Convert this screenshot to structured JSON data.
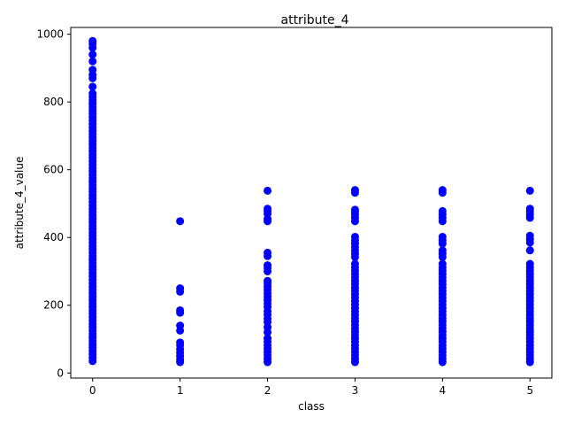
{
  "chart_data": {
    "type": "scatter",
    "title": "attribute_4",
    "xlabel": "class",
    "ylabel": "attribute_4_value",
    "xlim": [
      -0.25,
      5.25
    ],
    "ylim": [
      -15,
      1020
    ],
    "xticks": [
      0,
      1,
      2,
      3,
      4,
      5
    ],
    "yticks": [
      0,
      200,
      400,
      600,
      800,
      1000
    ],
    "grid": false,
    "marker_color": "#0000ff",
    "series": [
      {
        "points": [
          {
            "x": 0,
            "y": 35
          },
          {
            "x": 0,
            "y": 45
          },
          {
            "x": 0,
            "y": 55
          },
          {
            "x": 0,
            "y": 65
          },
          {
            "x": 0,
            "y": 75
          },
          {
            "x": 0,
            "y": 85
          },
          {
            "x": 0,
            "y": 95
          },
          {
            "x": 0,
            "y": 105
          },
          {
            "x": 0,
            "y": 115
          },
          {
            "x": 0,
            "y": 125
          },
          {
            "x": 0,
            "y": 135
          },
          {
            "x": 0,
            "y": 145
          },
          {
            "x": 0,
            "y": 155
          },
          {
            "x": 0,
            "y": 165
          },
          {
            "x": 0,
            "y": 175
          },
          {
            "x": 0,
            "y": 185
          },
          {
            "x": 0,
            "y": 195
          },
          {
            "x": 0,
            "y": 205
          },
          {
            "x": 0,
            "y": 215
          },
          {
            "x": 0,
            "y": 225
          },
          {
            "x": 0,
            "y": 235
          },
          {
            "x": 0,
            "y": 245
          },
          {
            "x": 0,
            "y": 255
          },
          {
            "x": 0,
            "y": 265
          },
          {
            "x": 0,
            "y": 275
          },
          {
            "x": 0,
            "y": 285
          },
          {
            "x": 0,
            "y": 295
          },
          {
            "x": 0,
            "y": 305
          },
          {
            "x": 0,
            "y": 315
          },
          {
            "x": 0,
            "y": 325
          },
          {
            "x": 0,
            "y": 335
          },
          {
            "x": 0,
            "y": 345
          },
          {
            "x": 0,
            "y": 355
          },
          {
            "x": 0,
            "y": 365
          },
          {
            "x": 0,
            "y": 375
          },
          {
            "x": 0,
            "y": 385
          },
          {
            "x": 0,
            "y": 395
          },
          {
            "x": 0,
            "y": 405
          },
          {
            "x": 0,
            "y": 415
          },
          {
            "x": 0,
            "y": 425
          },
          {
            "x": 0,
            "y": 435
          },
          {
            "x": 0,
            "y": 445
          },
          {
            "x": 0,
            "y": 455
          },
          {
            "x": 0,
            "y": 465
          },
          {
            "x": 0,
            "y": 475
          },
          {
            "x": 0,
            "y": 485
          },
          {
            "x": 0,
            "y": 495
          },
          {
            "x": 0,
            "y": 505
          },
          {
            "x": 0,
            "y": 515
          },
          {
            "x": 0,
            "y": 525
          },
          {
            "x": 0,
            "y": 535
          },
          {
            "x": 0,
            "y": 545
          },
          {
            "x": 0,
            "y": 555
          },
          {
            "x": 0,
            "y": 565
          },
          {
            "x": 0,
            "y": 575
          },
          {
            "x": 0,
            "y": 585
          },
          {
            "x": 0,
            "y": 595
          },
          {
            "x": 0,
            "y": 605
          },
          {
            "x": 0,
            "y": 615
          },
          {
            "x": 0,
            "y": 625
          },
          {
            "x": 0,
            "y": 635
          },
          {
            "x": 0,
            "y": 645
          },
          {
            "x": 0,
            "y": 655
          },
          {
            "x": 0,
            "y": 665
          },
          {
            "x": 0,
            "y": 675
          },
          {
            "x": 0,
            "y": 685
          },
          {
            "x": 0,
            "y": 695
          },
          {
            "x": 0,
            "y": 705
          },
          {
            "x": 0,
            "y": 715
          },
          {
            "x": 0,
            "y": 725
          },
          {
            "x": 0,
            "y": 735
          },
          {
            "x": 0,
            "y": 745
          },
          {
            "x": 0,
            "y": 755
          },
          {
            "x": 0,
            "y": 765
          },
          {
            "x": 0,
            "y": 775
          },
          {
            "x": 0,
            "y": 785
          },
          {
            "x": 0,
            "y": 795
          },
          {
            "x": 0,
            "y": 805
          },
          {
            "x": 0,
            "y": 815
          },
          {
            "x": 0,
            "y": 825
          },
          {
            "x": 0,
            "y": 845
          },
          {
            "x": 0,
            "y": 870
          },
          {
            "x": 0,
            "y": 880
          },
          {
            "x": 0,
            "y": 895
          },
          {
            "x": 0,
            "y": 920
          },
          {
            "x": 0,
            "y": 940
          },
          {
            "x": 0,
            "y": 960
          },
          {
            "x": 0,
            "y": 972
          },
          {
            "x": 0,
            "y": 980
          },
          {
            "x": 1,
            "y": 32
          },
          {
            "x": 1,
            "y": 40
          },
          {
            "x": 1,
            "y": 50
          },
          {
            "x": 1,
            "y": 60
          },
          {
            "x": 1,
            "y": 70
          },
          {
            "x": 1,
            "y": 82
          },
          {
            "x": 1,
            "y": 90
          },
          {
            "x": 1,
            "y": 125
          },
          {
            "x": 1,
            "y": 140
          },
          {
            "x": 1,
            "y": 178
          },
          {
            "x": 1,
            "y": 185
          },
          {
            "x": 1,
            "y": 240
          },
          {
            "x": 1,
            "y": 250
          },
          {
            "x": 1,
            "y": 448
          },
          {
            "x": 2,
            "y": 32
          },
          {
            "x": 2,
            "y": 42
          },
          {
            "x": 2,
            "y": 52
          },
          {
            "x": 2,
            "y": 62
          },
          {
            "x": 2,
            "y": 72
          },
          {
            "x": 2,
            "y": 82
          },
          {
            "x": 2,
            "y": 92
          },
          {
            "x": 2,
            "y": 102
          },
          {
            "x": 2,
            "y": 120
          },
          {
            "x": 2,
            "y": 135
          },
          {
            "x": 2,
            "y": 150
          },
          {
            "x": 2,
            "y": 160
          },
          {
            "x": 2,
            "y": 172
          },
          {
            "x": 2,
            "y": 182
          },
          {
            "x": 2,
            "y": 195
          },
          {
            "x": 2,
            "y": 205
          },
          {
            "x": 2,
            "y": 215
          },
          {
            "x": 2,
            "y": 225
          },
          {
            "x": 2,
            "y": 235
          },
          {
            "x": 2,
            "y": 245
          },
          {
            "x": 2,
            "y": 255
          },
          {
            "x": 2,
            "y": 265
          },
          {
            "x": 2,
            "y": 272
          },
          {
            "x": 2,
            "y": 300
          },
          {
            "x": 2,
            "y": 310
          },
          {
            "x": 2,
            "y": 318
          },
          {
            "x": 2,
            "y": 345
          },
          {
            "x": 2,
            "y": 355
          },
          {
            "x": 2,
            "y": 448
          },
          {
            "x": 2,
            "y": 455
          },
          {
            "x": 2,
            "y": 470
          },
          {
            "x": 2,
            "y": 478
          },
          {
            "x": 2,
            "y": 485
          },
          {
            "x": 2,
            "y": 538
          },
          {
            "x": 3,
            "y": 32
          },
          {
            "x": 3,
            "y": 42
          },
          {
            "x": 3,
            "y": 52
          },
          {
            "x": 3,
            "y": 62
          },
          {
            "x": 3,
            "y": 72
          },
          {
            "x": 3,
            "y": 82
          },
          {
            "x": 3,
            "y": 92
          },
          {
            "x": 3,
            "y": 102
          },
          {
            "x": 3,
            "y": 112
          },
          {
            "x": 3,
            "y": 122
          },
          {
            "x": 3,
            "y": 132
          },
          {
            "x": 3,
            "y": 142
          },
          {
            "x": 3,
            "y": 152
          },
          {
            "x": 3,
            "y": 162
          },
          {
            "x": 3,
            "y": 172
          },
          {
            "x": 3,
            "y": 182
          },
          {
            "x": 3,
            "y": 192
          },
          {
            "x": 3,
            "y": 202
          },
          {
            "x": 3,
            "y": 212
          },
          {
            "x": 3,
            "y": 222
          },
          {
            "x": 3,
            "y": 232
          },
          {
            "x": 3,
            "y": 242
          },
          {
            "x": 3,
            "y": 252
          },
          {
            "x": 3,
            "y": 262
          },
          {
            "x": 3,
            "y": 272
          },
          {
            "x": 3,
            "y": 282
          },
          {
            "x": 3,
            "y": 292
          },
          {
            "x": 3,
            "y": 302
          },
          {
            "x": 3,
            "y": 312
          },
          {
            "x": 3,
            "y": 322
          },
          {
            "x": 3,
            "y": 342
          },
          {
            "x": 3,
            "y": 352
          },
          {
            "x": 3,
            "y": 362
          },
          {
            "x": 3,
            "y": 372
          },
          {
            "x": 3,
            "y": 382
          },
          {
            "x": 3,
            "y": 392
          },
          {
            "x": 3,
            "y": 402
          },
          {
            "x": 3,
            "y": 448
          },
          {
            "x": 3,
            "y": 458
          },
          {
            "x": 3,
            "y": 468
          },
          {
            "x": 3,
            "y": 475
          },
          {
            "x": 3,
            "y": 482
          },
          {
            "x": 3,
            "y": 532
          },
          {
            "x": 3,
            "y": 540
          },
          {
            "x": 4,
            "y": 32
          },
          {
            "x": 4,
            "y": 42
          },
          {
            "x": 4,
            "y": 52
          },
          {
            "x": 4,
            "y": 62
          },
          {
            "x": 4,
            "y": 72
          },
          {
            "x": 4,
            "y": 82
          },
          {
            "x": 4,
            "y": 92
          },
          {
            "x": 4,
            "y": 102
          },
          {
            "x": 4,
            "y": 112
          },
          {
            "x": 4,
            "y": 122
          },
          {
            "x": 4,
            "y": 132
          },
          {
            "x": 4,
            "y": 142
          },
          {
            "x": 4,
            "y": 152
          },
          {
            "x": 4,
            "y": 162
          },
          {
            "x": 4,
            "y": 172
          },
          {
            "x": 4,
            "y": 182
          },
          {
            "x": 4,
            "y": 192
          },
          {
            "x": 4,
            "y": 202
          },
          {
            "x": 4,
            "y": 212
          },
          {
            "x": 4,
            "y": 222
          },
          {
            "x": 4,
            "y": 232
          },
          {
            "x": 4,
            "y": 242
          },
          {
            "x": 4,
            "y": 252
          },
          {
            "x": 4,
            "y": 262
          },
          {
            "x": 4,
            "y": 272
          },
          {
            "x": 4,
            "y": 282
          },
          {
            "x": 4,
            "y": 292
          },
          {
            "x": 4,
            "y": 302
          },
          {
            "x": 4,
            "y": 312
          },
          {
            "x": 4,
            "y": 322
          },
          {
            "x": 4,
            "y": 342
          },
          {
            "x": 4,
            "y": 352
          },
          {
            "x": 4,
            "y": 362
          },
          {
            "x": 4,
            "y": 382
          },
          {
            "x": 4,
            "y": 392
          },
          {
            "x": 4,
            "y": 402
          },
          {
            "x": 4,
            "y": 448
          },
          {
            "x": 4,
            "y": 458
          },
          {
            "x": 4,
            "y": 468
          },
          {
            "x": 4,
            "y": 478
          },
          {
            "x": 4,
            "y": 532
          },
          {
            "x": 4,
            "y": 540
          },
          {
            "x": 5,
            "y": 32
          },
          {
            "x": 5,
            "y": 42
          },
          {
            "x": 5,
            "y": 52
          },
          {
            "x": 5,
            "y": 62
          },
          {
            "x": 5,
            "y": 72
          },
          {
            "x": 5,
            "y": 82
          },
          {
            "x": 5,
            "y": 92
          },
          {
            "x": 5,
            "y": 102
          },
          {
            "x": 5,
            "y": 112
          },
          {
            "x": 5,
            "y": 122
          },
          {
            "x": 5,
            "y": 132
          },
          {
            "x": 5,
            "y": 142
          },
          {
            "x": 5,
            "y": 152
          },
          {
            "x": 5,
            "y": 162
          },
          {
            "x": 5,
            "y": 172
          },
          {
            "x": 5,
            "y": 182
          },
          {
            "x": 5,
            "y": 192
          },
          {
            "x": 5,
            "y": 202
          },
          {
            "x": 5,
            "y": 212
          },
          {
            "x": 5,
            "y": 222
          },
          {
            "x": 5,
            "y": 232
          },
          {
            "x": 5,
            "y": 242
          },
          {
            "x": 5,
            "y": 252
          },
          {
            "x": 5,
            "y": 262
          },
          {
            "x": 5,
            "y": 272
          },
          {
            "x": 5,
            "y": 282
          },
          {
            "x": 5,
            "y": 292
          },
          {
            "x": 5,
            "y": 302
          },
          {
            "x": 5,
            "y": 312
          },
          {
            "x": 5,
            "y": 322
          },
          {
            "x": 5,
            "y": 362
          },
          {
            "x": 5,
            "y": 385
          },
          {
            "x": 5,
            "y": 395
          },
          {
            "x": 5,
            "y": 405
          },
          {
            "x": 5,
            "y": 458
          },
          {
            "x": 5,
            "y": 468
          },
          {
            "x": 5,
            "y": 478
          },
          {
            "x": 5,
            "y": 485
          },
          {
            "x": 5,
            "y": 538
          }
        ]
      }
    ]
  }
}
